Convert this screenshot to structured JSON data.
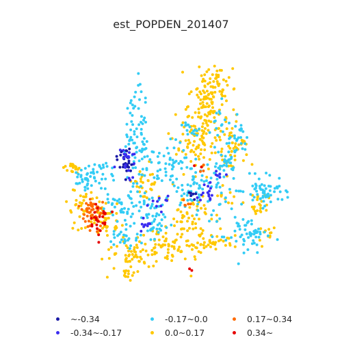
{
  "title": "est_POPDEN_201407",
  "legend": [
    {
      "label": "~-0.34",
      "color": "#1a1aa6"
    },
    {
      "label": "-0.34~-0.17",
      "color": "#3b2cf0"
    },
    {
      "label": "-0.17~0.0",
      "color": "#33ccf5"
    },
    {
      "label": "0.0~0.17",
      "color": "#ffc800"
    },
    {
      "label": "0.17~0.34",
      "color": "#ff6a00"
    },
    {
      "label": "0.34~",
      "color": "#e60000"
    }
  ]
}
